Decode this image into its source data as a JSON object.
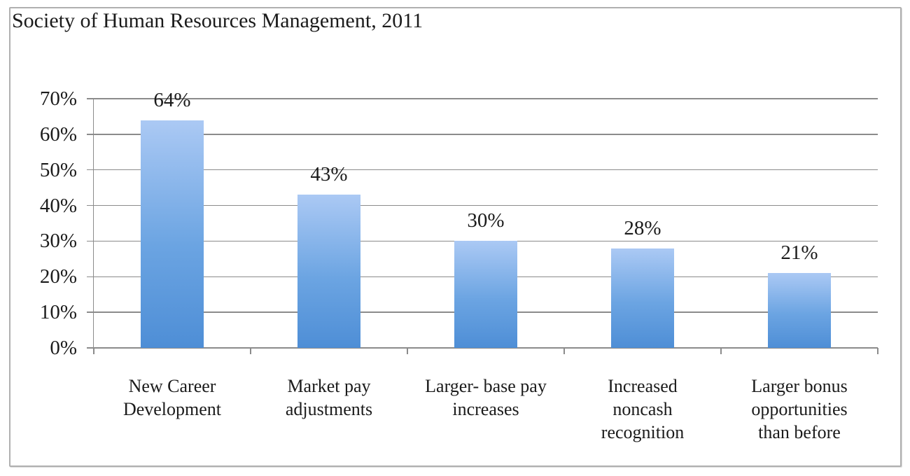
{
  "chart_data": {
    "type": "bar",
    "title": "Society of Human Resources Management, 2011",
    "categories": [
      "New Career Development",
      "Market pay adjustments",
      "Larger- base pay increases",
      "Increased noncash recognition",
      "Larger bonus opportunities than before"
    ],
    "categories_wrapped": [
      "New Career\nDevelopment",
      "Market pay\nadjustments",
      "Larger- base pay\nincreases",
      "Increased\nnoncash\nrecognition",
      "Larger bonus\nopportunities\nthan before"
    ],
    "values": [
      64,
      43,
      30,
      28,
      21
    ],
    "data_labels": [
      "64%",
      "43%",
      "30%",
      "28%",
      "21%"
    ],
    "xlabel": "",
    "ylabel": "",
    "ylim": [
      0,
      70
    ],
    "y_tick_step": 10,
    "y_tick_labels": [
      "0%",
      "10%",
      "20%",
      "30%",
      "40%",
      "50%",
      "60%",
      "70%"
    ],
    "grid": true,
    "legend": "none"
  },
  "colors": {
    "bar_gradient_top": "#abc9f4",
    "bar_gradient_bottom": "#4e8ed6",
    "gridline": "#8b8b8b",
    "axis": "#8b8b8b",
    "text": "#1b1b1b",
    "frame_border": "#b0b0b0",
    "background": "#ffffff"
  }
}
